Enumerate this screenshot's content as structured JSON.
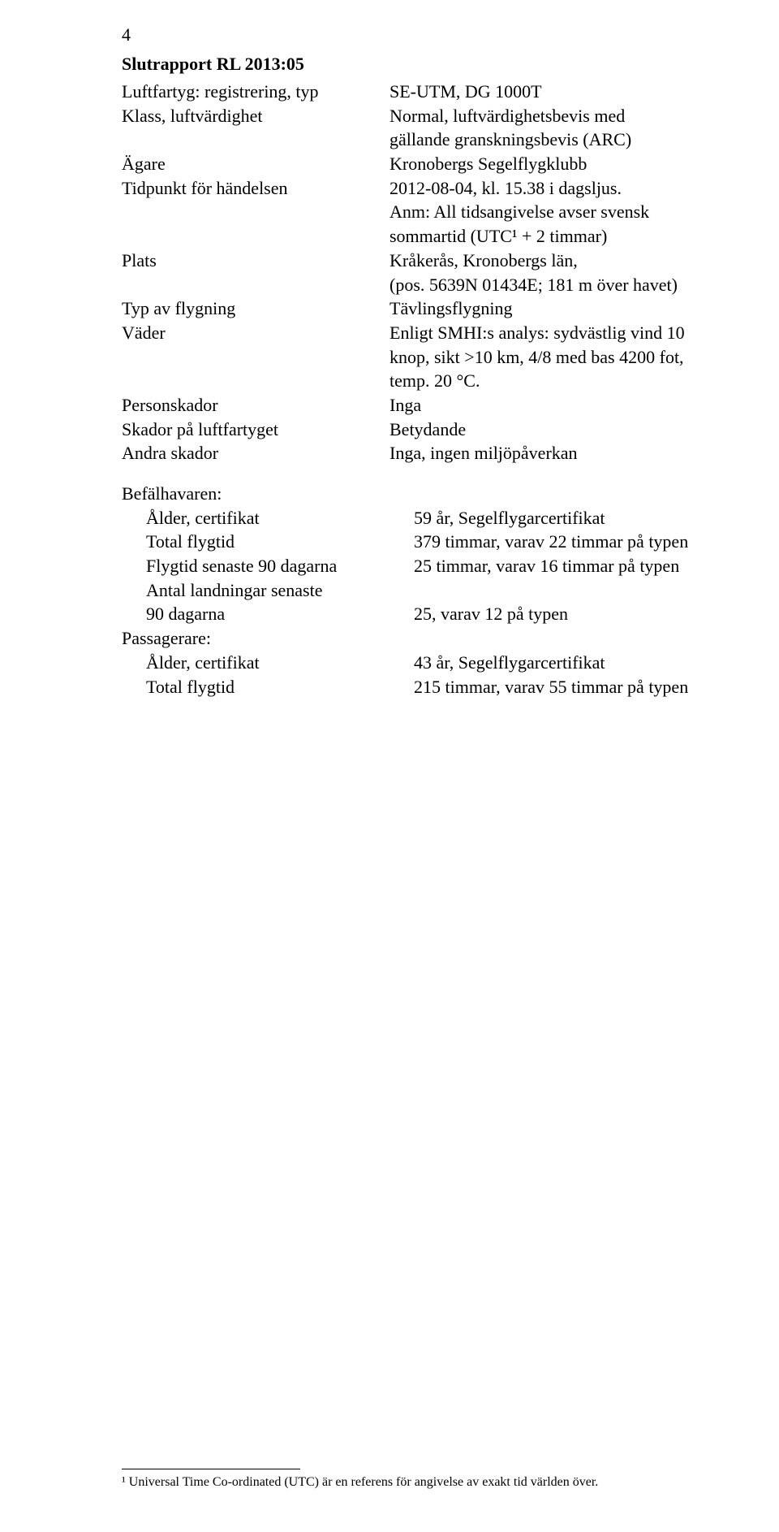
{
  "page": {
    "number": "4",
    "title": "Slutrapport RL 2013:05"
  },
  "block1": [
    {
      "label": "Luftfartyg: registrering, typ",
      "value": "SE-UTM, DG 1000T"
    },
    {
      "label": "Klass, luftvärdighet",
      "value": "Normal, luftvärdighetsbevis med gällande granskningsbevis (ARC)"
    },
    {
      "label": "Ägare",
      "value": "Kronobergs Segelflygklubb"
    },
    {
      "label": "Tidpunkt för händelsen",
      "value": "2012-08-04, kl. 15.38 i dagsljus.\nAnm: All tidsangivelse avser svensk sommartid (UTC¹ + 2 timmar)"
    },
    {
      "label": "Plats",
      "value": "Kråkerås, Kronobergs län,\n(pos. 5639N 01434E; 181 m över havet)"
    },
    {
      "label": "Typ av flygning",
      "value": "Tävlingsflygning"
    },
    {
      "label": "Väder",
      "value": "Enligt SMHI:s analys: sydvästlig vind 10 knop, sikt >10 km, 4/8 med bas 4200 fot, temp. 20 °C."
    },
    {
      "label": "Personskador",
      "value": "Inga"
    },
    {
      "label": "Skador på luftfartyget",
      "value": "Betydande"
    },
    {
      "label": "Andra skador",
      "value": "Inga, ingen miljöpåverkan"
    }
  ],
  "block2": {
    "header": "Befälhavaren:",
    "rows": [
      {
        "label": "Ålder, certifikat",
        "value": "59 år, Segelflygarcertifikat"
      },
      {
        "label": "Total flygtid",
        "value": "379 timmar, varav 22 timmar på typen"
      },
      {
        "label": "Flygtid senaste 90 dagarna",
        "value": "25 timmar, varav 16 timmar på typen"
      },
      {
        "label": "Antal landningar senaste\n90 dagarna",
        "value": "25, varav 12 på typen",
        "multiLineLabel": true
      }
    ]
  },
  "block3": {
    "header": "Passagerare:",
    "rows": [
      {
        "label": "Ålder, certifikat",
        "value": "43 år, Segelflygarcertifikat"
      },
      {
        "label": "Total flygtid",
        "value": "215 timmar, varav 55 timmar på typen"
      }
    ]
  },
  "footnote": "¹ Universal Time Co-ordinated (UTC) är en referens för angivelse av exakt tid världen över."
}
